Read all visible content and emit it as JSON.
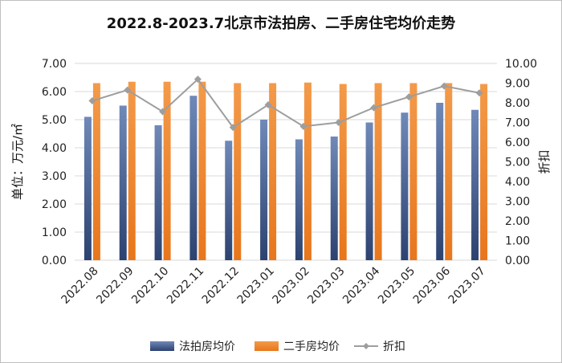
{
  "chart_data": {
    "type": "bar",
    "title": "2022.8-2023.7北京市法拍房、二手房住宅均价走势",
    "categories": [
      "2022.08",
      "2022.09",
      "2022.10",
      "2022.11",
      "2022.12",
      "2023.01",
      "2023.02",
      "2023.03",
      "2023.04",
      "2023.05",
      "2023.06",
      "2023.07"
    ],
    "ylabel": "单位：万元/㎡",
    "y2label": "折扣",
    "ylim": [
      0,
      7
    ],
    "y2lim": [
      0,
      10
    ],
    "yticks": [
      "0.00",
      "1.00",
      "2.00",
      "3.00",
      "4.00",
      "5.00",
      "6.00",
      "7.00"
    ],
    "y2ticks": [
      "0.00",
      "1.00",
      "2.00",
      "3.00",
      "4.00",
      "5.00",
      "6.00",
      "7.00",
      "8.00",
      "9.00",
      "10.00"
    ],
    "grid": true,
    "legend_position": "bottom",
    "series": [
      {
        "name": "法拍房均价",
        "kind": "bar",
        "axis": "left",
        "color": "#4a6496",
        "values": [
          5.1,
          5.5,
          4.8,
          5.85,
          4.25,
          5.0,
          4.3,
          4.4,
          4.9,
          5.25,
          5.6,
          5.35
        ]
      },
      {
        "name": "二手房均价",
        "kind": "bar",
        "axis": "left",
        "color": "#f0872d",
        "values": [
          6.3,
          6.35,
          6.35,
          6.35,
          6.3,
          6.3,
          6.32,
          6.27,
          6.3,
          6.3,
          6.3,
          6.27
        ]
      },
      {
        "name": "折扣",
        "kind": "line",
        "axis": "right",
        "color": "#9e9e9e",
        "values": [
          8.1,
          8.65,
          7.55,
          9.2,
          6.75,
          7.9,
          6.8,
          7.0,
          7.75,
          8.3,
          8.85,
          8.5
        ]
      }
    ],
    "legend": [
      "法拍房均价",
      "二手房均价",
      "折扣"
    ]
  }
}
